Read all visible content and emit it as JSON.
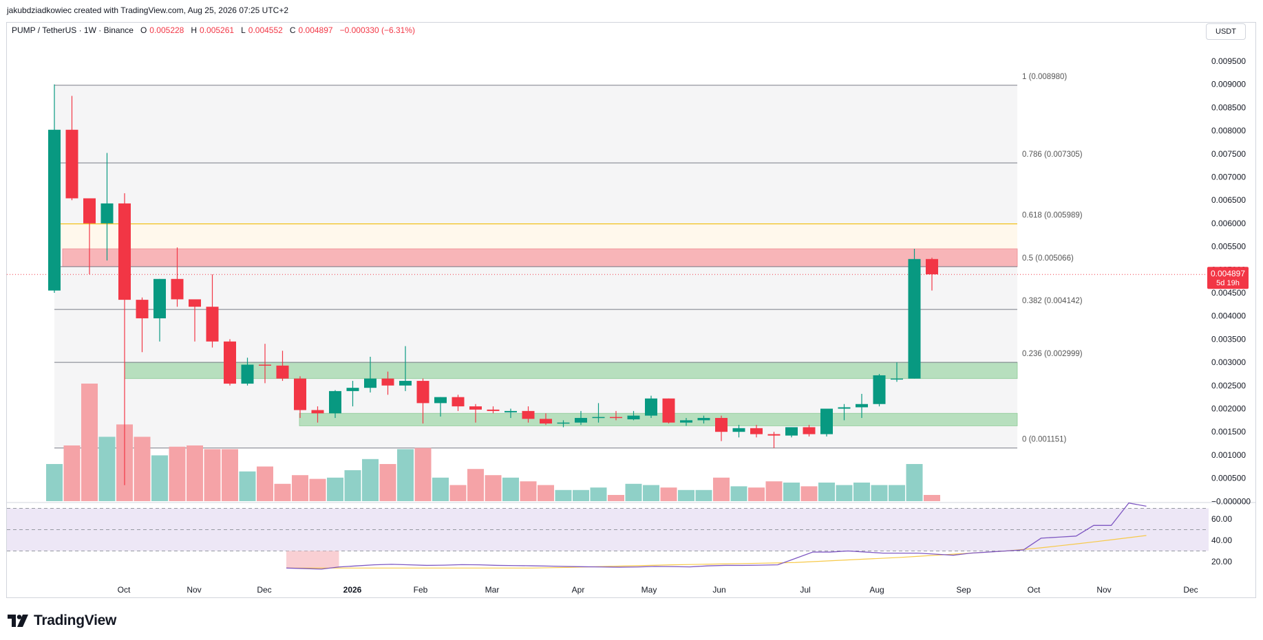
{
  "attribution": "jakubdziadkowiec created with TradingView.com, Aug 25, 2026 07:25 UTC+2",
  "legend": {
    "symbol": "PUMP / TetherUS · 1W · Binance",
    "open_label": "O",
    "open": "0.005228",
    "high_label": "H",
    "high": "0.005261",
    "low_label": "L",
    "low": "0.004552",
    "close_label": "C",
    "close": "0.004897",
    "change": "−0.000330 (−6.31%)"
  },
  "currency": "USDT",
  "price_tag": {
    "value": "0.004897",
    "countdown": "5d 19h"
  },
  "logo_text": "TradingView",
  "colors": {
    "up": "#089981",
    "down": "#f23645",
    "up_vol": "#8fd0c7",
    "down_vol": "#f5a3a7",
    "fib_line": "#787b86",
    "fib_golden": "#f2c21b",
    "resistance_zone": "#f8b5b8",
    "support_zone": "#b7dfbe",
    "rsi": "#7e57c2",
    "rsi_ma": "#f7c948",
    "rsi_band": "#ede7f6"
  },
  "chart_data": {
    "type": "candlestick",
    "timeframe": "1W",
    "y_axis": {
      "range": [
        0,
        0.0098
      ],
      "ticks": [
        "0.009500",
        "0.009000",
        "0.008500",
        "0.008000",
        "0.007500",
        "0.007000",
        "0.006500",
        "0.006000",
        "0.005500",
        "0.005000",
        "0.004500",
        "0.004000",
        "0.003500",
        "0.003000",
        "0.002500",
        "0.002000",
        "0.001500",
        "0.001000",
        "0.000500",
        "−0.000000"
      ]
    },
    "x_axis": {
      "ticks": [
        "Oct",
        "Nov",
        "Dec",
        "2026",
        "Feb",
        "Mar",
        "Apr",
        "May",
        "Jun",
        "Jul",
        "Aug",
        "Sep",
        "Oct",
        "Nov",
        "Dec"
      ]
    },
    "candles": [
      {
        "o": 0.00455,
        "h": 0.009,
        "l": 0.0045,
        "c": 0.00802,
        "v": 0.3
      },
      {
        "o": 0.00802,
        "h": 0.00875,
        "l": 0.0065,
        "c": 0.00654,
        "v": 0.45
      },
      {
        "o": 0.00654,
        "h": 0.00654,
        "l": 0.0049,
        "c": 0.006,
        "v": 0.95
      },
      {
        "o": 0.006,
        "h": 0.00752,
        "l": 0.0052,
        "c": 0.00643,
        "v": 0.52
      },
      {
        "o": 0.00643,
        "h": 0.00665,
        "l": 0.00035,
        "c": 0.00435,
        "v": 0.62
      },
      {
        "o": 0.00435,
        "h": 0.0044,
        "l": 0.00322,
        "c": 0.00395,
        "v": 0.52
      },
      {
        "o": 0.00395,
        "h": 0.0048,
        "l": 0.00345,
        "c": 0.0048,
        "v": 0.37
      },
      {
        "o": 0.0048,
        "h": 0.00548,
        "l": 0.0042,
        "c": 0.00436,
        "v": 0.44
      },
      {
        "o": 0.00436,
        "h": 0.00435,
        "l": 0.00345,
        "c": 0.0042,
        "v": 0.45
      },
      {
        "o": 0.0042,
        "h": 0.0049,
        "l": 0.00332,
        "c": 0.00345,
        "v": 0.42
      },
      {
        "o": 0.00345,
        "h": 0.0035,
        "l": 0.0025,
        "c": 0.00254,
        "v": 0.42
      },
      {
        "o": 0.00254,
        "h": 0.0031,
        "l": 0.0025,
        "c": 0.00295,
        "v": 0.24
      },
      {
        "o": 0.00295,
        "h": 0.0034,
        "l": 0.00255,
        "c": 0.00293,
        "v": 0.28
      },
      {
        "o": 0.00293,
        "h": 0.00325,
        "l": 0.0026,
        "c": 0.00265,
        "v": 0.14
      },
      {
        "o": 0.00265,
        "h": 0.0027,
        "l": 0.0018,
        "c": 0.00197,
        "v": 0.21
      },
      {
        "o": 0.00197,
        "h": 0.00205,
        "l": 0.0017,
        "c": 0.0019,
        "v": 0.18
      },
      {
        "o": 0.0019,
        "h": 0.0024,
        "l": 0.0018,
        "c": 0.00238,
        "v": 0.19
      },
      {
        "o": 0.00238,
        "h": 0.0026,
        "l": 0.00205,
        "c": 0.00245,
        "v": 0.25
      },
      {
        "o": 0.00245,
        "h": 0.00312,
        "l": 0.00235,
        "c": 0.00265,
        "v": 0.34
      },
      {
        "o": 0.00265,
        "h": 0.0028,
        "l": 0.0023,
        "c": 0.0025,
        "v": 0.3
      },
      {
        "o": 0.0025,
        "h": 0.00335,
        "l": 0.00238,
        "c": 0.0026,
        "v": 0.42
      },
      {
        "o": 0.0026,
        "h": 0.00265,
        "l": 0.00168,
        "c": 0.00212,
        "v": 0.43
      },
      {
        "o": 0.00212,
        "h": 0.00225,
        "l": 0.00183,
        "c": 0.00225,
        "v": 0.19
      },
      {
        "o": 0.00225,
        "h": 0.0023,
        "l": 0.00195,
        "c": 0.00205,
        "v": 0.13
      },
      {
        "o": 0.00205,
        "h": 0.0021,
        "l": 0.0017,
        "c": 0.00198,
        "v": 0.26
      },
      {
        "o": 0.00198,
        "h": 0.00205,
        "l": 0.0019,
        "c": 0.00195,
        "v": 0.21
      },
      {
        "o": 0.00192,
        "h": 0.002,
        "l": 0.0018,
        "c": 0.00195,
        "v": 0.19
      },
      {
        "o": 0.00195,
        "h": 0.00205,
        "l": 0.0017,
        "c": 0.00178,
        "v": 0.16
      },
      {
        "o": 0.00178,
        "h": 0.0019,
        "l": 0.00165,
        "c": 0.00168,
        "v": 0.13
      },
      {
        "o": 0.00168,
        "h": 0.00175,
        "l": 0.0016,
        "c": 0.0017,
        "v": 0.09
      },
      {
        "o": 0.0017,
        "h": 0.00195,
        "l": 0.00165,
        "c": 0.0018,
        "v": 0.09
      },
      {
        "o": 0.0018,
        "h": 0.00212,
        "l": 0.0017,
        "c": 0.00182,
        "v": 0.11
      },
      {
        "o": 0.00182,
        "h": 0.00195,
        "l": 0.00175,
        "c": 0.0018,
        "v": 0.05
      },
      {
        "o": 0.00177,
        "h": 0.00195,
        "l": 0.00175,
        "c": 0.00185,
        "v": 0.14
      },
      {
        "o": 0.00185,
        "h": 0.00228,
        "l": 0.0018,
        "c": 0.00222,
        "v": 0.13
      },
      {
        "o": 0.00222,
        "h": 0.00222,
        "l": 0.00168,
        "c": 0.0017,
        "v": 0.11
      },
      {
        "o": 0.0017,
        "h": 0.0018,
        "l": 0.00163,
        "c": 0.00175,
        "v": 0.09
      },
      {
        "o": 0.00175,
        "h": 0.00185,
        "l": 0.00168,
        "c": 0.0018,
        "v": 0.09
      },
      {
        "o": 0.0018,
        "h": 0.00185,
        "l": 0.0013,
        "c": 0.0015,
        "v": 0.19
      },
      {
        "o": 0.0015,
        "h": 0.00165,
        "l": 0.00138,
        "c": 0.00158,
        "v": 0.12
      },
      {
        "o": 0.00158,
        "h": 0.00165,
        "l": 0.00138,
        "c": 0.00145,
        "v": 0.11
      },
      {
        "o": 0.00145,
        "h": 0.0015,
        "l": 0.00115,
        "c": 0.00142,
        "v": 0.16
      },
      {
        "o": 0.00142,
        "h": 0.0016,
        "l": 0.00138,
        "c": 0.0016,
        "v": 0.15
      },
      {
        "o": 0.0016,
        "h": 0.00165,
        "l": 0.0014,
        "c": 0.00145,
        "v": 0.12
      },
      {
        "o": 0.00145,
        "h": 0.002,
        "l": 0.0014,
        "c": 0.002,
        "v": 0.15
      },
      {
        "o": 0.002,
        "h": 0.0021,
        "l": 0.00175,
        "c": 0.00203,
        "v": 0.13
      },
      {
        "o": 0.00203,
        "h": 0.00232,
        "l": 0.0018,
        "c": 0.0021,
        "v": 0.15
      },
      {
        "o": 0.0021,
        "h": 0.00275,
        "l": 0.00205,
        "c": 0.00272,
        "v": 0.13
      },
      {
        "o": 0.00265,
        "h": 0.003,
        "l": 0.00258,
        "c": 0.00265,
        "v": 0.13
      },
      {
        "o": 0.00265,
        "h": 0.00545,
        "l": 0.00265,
        "c": 0.00523,
        "v": 0.3
      },
      {
        "o": 0.00523,
        "h": 0.00526,
        "l": 0.00455,
        "c": 0.0049,
        "v": 0.05
      }
    ],
    "fib_levels": [
      {
        "ratio": "1",
        "label": "1 (0.008980)",
        "price": 0.00898
      },
      {
        "ratio": "0.786",
        "label": "0.786 (0.007305)",
        "price": 0.007305
      },
      {
        "ratio": "0.618",
        "label": "0.618 (0.005989)",
        "price": 0.005989
      },
      {
        "ratio": "0.5",
        "label": "0.5 (0.005066)",
        "price": 0.005066
      },
      {
        "ratio": "0.382",
        "label": "0.382 (0.004142)",
        "price": 0.004142
      },
      {
        "ratio": "0.236",
        "label": "0.236 (0.002999)",
        "price": 0.002999
      },
      {
        "ratio": "0",
        "label": "0 (0.001151)",
        "price": 0.001151
      }
    ],
    "zones": [
      {
        "kind": "resistance",
        "from": 0.005066,
        "to": 0.00545
      },
      {
        "kind": "support",
        "from": 0.00265,
        "to": 0.003
      },
      {
        "kind": "support",
        "from": 0.00163,
        "to": 0.0019
      }
    ],
    "rsi": {
      "axis_ticks": [
        "60.00",
        "40.00",
        "20.00"
      ],
      "upper_band": 70,
      "lower_band": 30,
      "mid": 50,
      "values": [
        14,
        13.5,
        13,
        15,
        16,
        17,
        17.5,
        17,
        16.5,
        16.7,
        17.2,
        17,
        16.5,
        16.3,
        16.1,
        15.8,
        15.5,
        15.2,
        15,
        14.8,
        15,
        15.5,
        15.3,
        15.1,
        16,
        16.5,
        16.5,
        16.7,
        17,
        23,
        29,
        29,
        30,
        29,
        28,
        28,
        28,
        27,
        26,
        28,
        29,
        30,
        31,
        42,
        43,
        44,
        54,
        54,
        75,
        72
      ],
      "ma_values": [
        14,
        14,
        14,
        14,
        14,
        14,
        14,
        14,
        14,
        14,
        14,
        14,
        14,
        14,
        14,
        14.3,
        14.6,
        15,
        15.4,
        15.8,
        16.2,
        16.6,
        17,
        17.3,
        17.6,
        17.9,
        18.2,
        18.5,
        18.8,
        19.2,
        20,
        20.8,
        21.6,
        22.4,
        23.2,
        24,
        25,
        26,
        27,
        28,
        29,
        30,
        31.5,
        33,
        34.8,
        36.6,
        38.5,
        40.5,
        42.5,
        44.5
      ]
    }
  }
}
